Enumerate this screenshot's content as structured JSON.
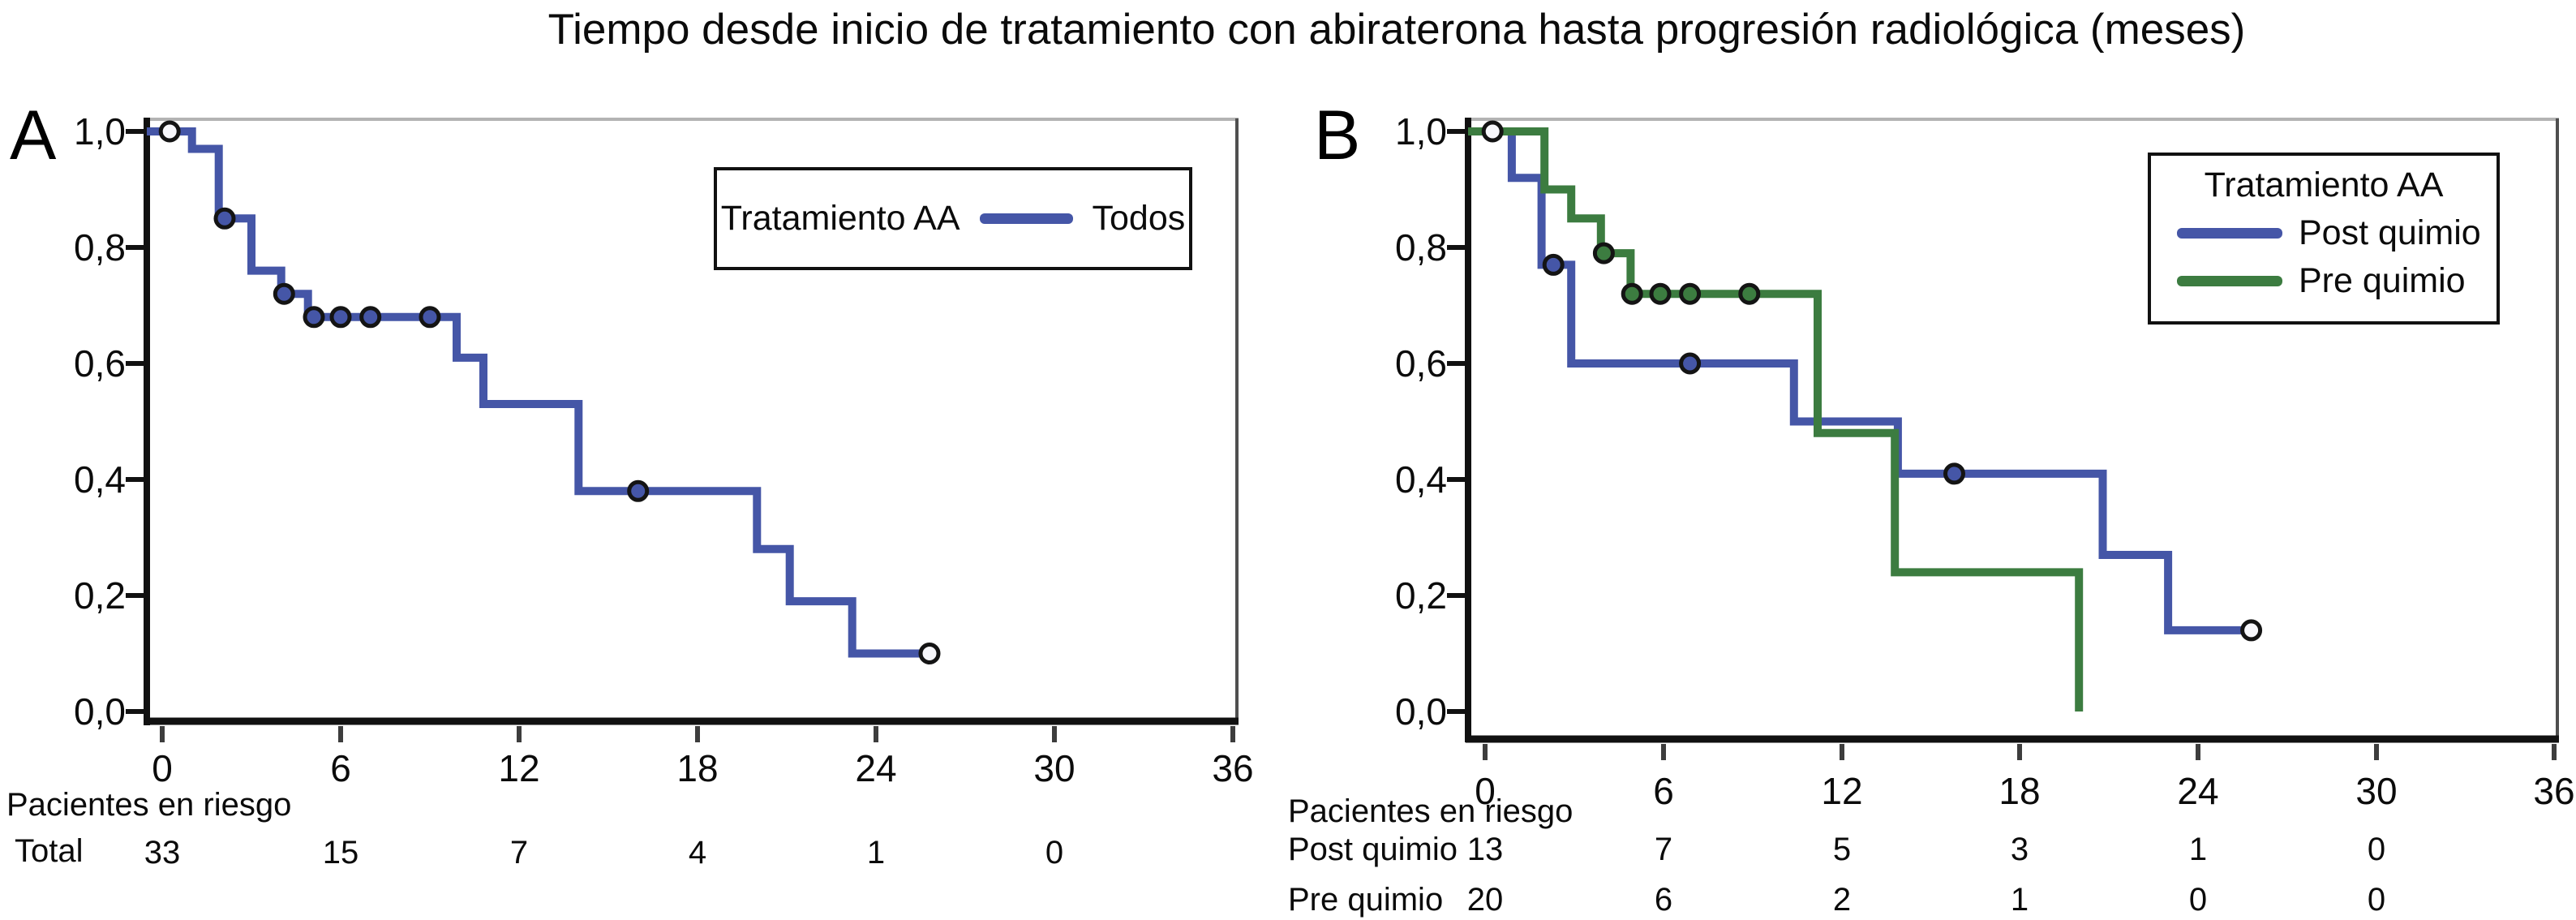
{
  "title": "Tiempo desde inicio de tratamiento con abiraterona hasta progresión radiológica (meses)",
  "colors": {
    "todos_blue": "#4556a7",
    "post_quimio_blue": "#4556a7",
    "pre_quimio_green": "#3c7c40",
    "axis_black": "#111111",
    "plot_top_border_gray": "#b3b3b3",
    "plot_right_border_gray": "#4f4f4f",
    "censor_ring": "#141414"
  },
  "panels": [
    {
      "label": "A",
      "y_ticks": [
        "1,0",
        "0,8",
        "0,6",
        "0,4",
        "0,2",
        "0,0"
      ],
      "x_ticks": [
        "0",
        "6",
        "12",
        "18",
        "24",
        "30",
        "36"
      ],
      "legend": {
        "title": "Tratamiento AA",
        "entries": [
          {
            "label": "Todos",
            "color": "#4556a7"
          }
        ]
      },
      "risk_header": "Pacientes en riesgo",
      "risk_rows": [
        {
          "label": "Total",
          "values": [
            "33",
            "15",
            "7",
            "4",
            "1",
            "0"
          ]
        }
      ]
    },
    {
      "label": "B",
      "y_ticks": [
        "1,0",
        "0,8",
        "0,6",
        "0,4",
        "0,2",
        "0,0"
      ],
      "x_ticks": [
        "0",
        "6",
        "12",
        "18",
        "24",
        "30",
        "36"
      ],
      "legend": {
        "title": "Tratamiento AA",
        "entries": [
          {
            "label": "Post quimio",
            "color": "#4556a7"
          },
          {
            "label": "Pre quimio",
            "color": "#3c7c40"
          }
        ]
      },
      "risk_header": "Pacientes en riesgo",
      "risk_rows": [
        {
          "label": "Post quimio",
          "values": [
            "13",
            "7",
            "5",
            "3",
            "1",
            "0"
          ]
        },
        {
          "label": "Pre quimio",
          "values": [
            "20",
            "6",
            "2",
            "1",
            "0",
            "0"
          ]
        }
      ]
    }
  ],
  "chart_data": [
    {
      "type": "line",
      "subtype": "kaplan-meier-step",
      "panel": "A",
      "xlabel": "",
      "ylabel": "",
      "xlim": [
        0,
        36
      ],
      "ylim": [
        0.0,
        1.0
      ],
      "x_tick_values": [
        0,
        6,
        12,
        18,
        24,
        30,
        36
      ],
      "y_tick_values": [
        1.0,
        0.8,
        0.6,
        0.4,
        0.2,
        0.0
      ],
      "grid": false,
      "legend_position": "top-right",
      "series": [
        {
          "name": "Todos",
          "color": "#4556a7",
          "steps": [
            [
              0,
              1.0
            ],
            [
              1.0,
              1.0
            ],
            [
              1.0,
              0.97
            ],
            [
              1.9,
              0.97
            ],
            [
              1.9,
              0.85
            ],
            [
              3.0,
              0.85
            ],
            [
              3.0,
              0.76
            ],
            [
              4.0,
              0.76
            ],
            [
              4.0,
              0.72
            ],
            [
              4.9,
              0.72
            ],
            [
              4.9,
              0.68
            ],
            [
              9.9,
              0.68
            ],
            [
              9.9,
              0.61
            ],
            [
              10.8,
              0.61
            ],
            [
              10.8,
              0.53
            ],
            [
              14.0,
              0.53
            ],
            [
              14.0,
              0.38
            ],
            [
              20.0,
              0.38
            ],
            [
              20.0,
              0.28
            ],
            [
              21.1,
              0.28
            ],
            [
              21.1,
              0.19
            ],
            [
              23.2,
              0.19
            ],
            [
              23.2,
              0.1
            ],
            [
              26.0,
              0.1
            ]
          ],
          "censor_marks": [
            [
              0.25,
              1.0,
              "open"
            ],
            [
              2.1,
              0.85
            ],
            [
              4.1,
              0.72
            ],
            [
              5.1,
              0.68
            ],
            [
              6.0,
              0.68
            ],
            [
              7.0,
              0.68
            ],
            [
              9.0,
              0.68
            ],
            [
              16.0,
              0.38
            ],
            [
              25.8,
              0.1,
              "open"
            ]
          ]
        }
      ]
    },
    {
      "type": "line",
      "subtype": "kaplan-meier-step",
      "panel": "B",
      "xlabel": "",
      "ylabel": "",
      "xlim": [
        0,
        36
      ],
      "ylim": [
        0.0,
        1.0
      ],
      "x_tick_values": [
        0,
        6,
        12,
        18,
        24,
        30,
        36
      ],
      "y_tick_values": [
        1.0,
        0.8,
        0.6,
        0.4,
        0.2,
        0.0
      ],
      "grid": false,
      "legend_position": "top-right",
      "series": [
        {
          "name": "Post quimio",
          "color": "#4556a7",
          "steps": [
            [
              0,
              1.0
            ],
            [
              0.9,
              1.0
            ],
            [
              0.9,
              0.92
            ],
            [
              1.9,
              0.92
            ],
            [
              1.9,
              0.77
            ],
            [
              2.9,
              0.77
            ],
            [
              2.9,
              0.6
            ],
            [
              10.4,
              0.6
            ],
            [
              10.4,
              0.5
            ],
            [
              13.9,
              0.5
            ],
            [
              13.9,
              0.41
            ],
            [
              20.8,
              0.41
            ],
            [
              20.8,
              0.27
            ],
            [
              23.0,
              0.27
            ],
            [
              23.0,
              0.14
            ],
            [
              25.9,
              0.14
            ]
          ],
          "censor_marks": [
            [
              2.3,
              0.77
            ],
            [
              6.9,
              0.6
            ],
            [
              15.8,
              0.41
            ],
            [
              25.8,
              0.14,
              "open"
            ]
          ]
        },
        {
          "name": "Pre quimio",
          "color": "#3c7c40",
          "steps": [
            [
              0,
              1.0
            ],
            [
              2.0,
              1.0
            ],
            [
              2.0,
              0.9
            ],
            [
              2.9,
              0.9
            ],
            [
              2.9,
              0.85
            ],
            [
              3.9,
              0.85
            ],
            [
              3.9,
              0.79
            ],
            [
              4.9,
              0.79
            ],
            [
              4.9,
              0.72
            ],
            [
              11.2,
              0.72
            ],
            [
              11.2,
              0.48
            ],
            [
              13.8,
              0.48
            ],
            [
              13.8,
              0.24
            ],
            [
              20.0,
              0.24
            ],
            [
              20.0,
              0.0
            ]
          ],
          "censor_marks": [
            [
              0.25,
              1.0,
              "open"
            ],
            [
              4.0,
              0.79
            ],
            [
              4.95,
              0.72
            ],
            [
              5.9,
              0.72
            ],
            [
              6.9,
              0.72
            ],
            [
              8.9,
              0.72
            ]
          ]
        }
      ]
    }
  ]
}
